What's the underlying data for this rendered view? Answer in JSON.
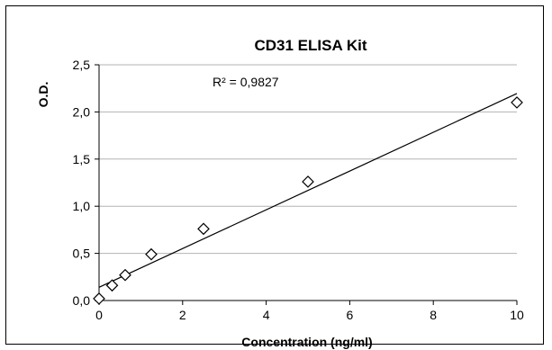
{
  "chart_data": {
    "type": "scatter",
    "title": "CD31 ELISA Kit",
    "xlabel": "Concentration  (ng/ml)",
    "ylabel": "O.D.",
    "xlim": [
      0,
      10
    ],
    "ylim": [
      0,
      2.5
    ],
    "x_ticks": [
      "0",
      "2",
      "4",
      "6",
      "8",
      "10"
    ],
    "x_tick_values": [
      0,
      2,
      4,
      6,
      8,
      10
    ],
    "y_ticks": [
      "0,0",
      "0,5",
      "1,0",
      "1,5",
      "2,0",
      "2,5"
    ],
    "y_tick_values": [
      0,
      0.5,
      1.0,
      1.5,
      2.0,
      2.5
    ],
    "grid": "horizontal",
    "marker": "diamond-open",
    "points": [
      {
        "x": 0,
        "y": 0.02
      },
      {
        "x": 0.3125,
        "y": 0.16
      },
      {
        "x": 0.625,
        "y": 0.27
      },
      {
        "x": 1.25,
        "y": 0.49
      },
      {
        "x": 2.5,
        "y": 0.76
      },
      {
        "x": 5,
        "y": 1.26
      },
      {
        "x": 10,
        "y": 2.1
      }
    ],
    "trendline": {
      "type": "linear",
      "slope": 0.2055,
      "intercept": 0.14
    },
    "annotation": "R² = 0,9827",
    "colors": {
      "grid": "#b3b3b3",
      "axis": "#000000",
      "marker": "#000000"
    }
  }
}
